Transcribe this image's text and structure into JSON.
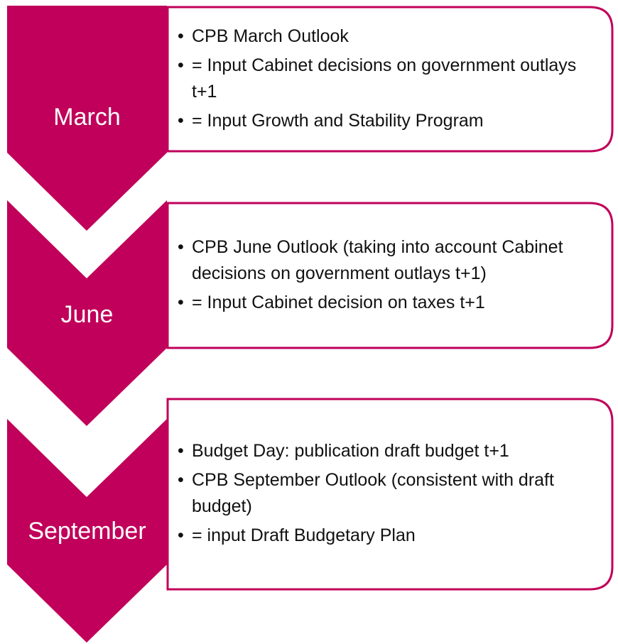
{
  "stages": [
    {
      "label": "March",
      "bullets": [
        "CPB March Outlook",
        "= Input Cabinet decisions on government outlays  t+1",
        "= Input Growth and Stability Program"
      ]
    },
    {
      "label": "June",
      "bullets": [
        "CPB June Outlook (taking into account Cabinet decisions on government outlays t+1)",
        "= Input Cabinet decision on taxes t+1"
      ]
    },
    {
      "label": "September",
      "bullets": [
        "Budget Day: publication draft budget t+1",
        "CPB September Outlook (consistent with draft budget)",
        "= input Draft Budgetary Plan"
      ]
    }
  ]
}
